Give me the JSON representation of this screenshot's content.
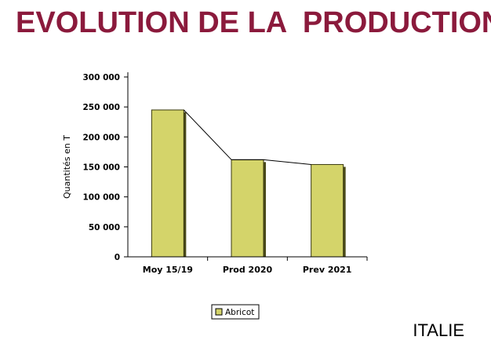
{
  "slide": {
    "title": "EVOLUTION DE LA  PRODUCTION",
    "country": "ITALIE"
  },
  "chart_data": {
    "type": "bar",
    "categories": [
      "Moy 15/19",
      "Prod 2020",
      "Prev 2021"
    ],
    "series": [
      {
        "name": "Abricot",
        "values": [
          245000,
          162000,
          154000
        ]
      }
    ],
    "ylabel": "Quantités en T",
    "ylim": [
      0,
      300000
    ],
    "yticks": [
      0,
      50000,
      100000,
      150000,
      200000,
      250000,
      300000
    ],
    "ytick_labels": [
      "0",
      "50 000",
      "100 000",
      "150 000",
      "200 000",
      "250 000",
      "300 000"
    ],
    "grid": false,
    "trend_line": true,
    "legend_position": "bottom",
    "bar_color": "#d4d46a",
    "title_color": "#8b1a3c"
  }
}
